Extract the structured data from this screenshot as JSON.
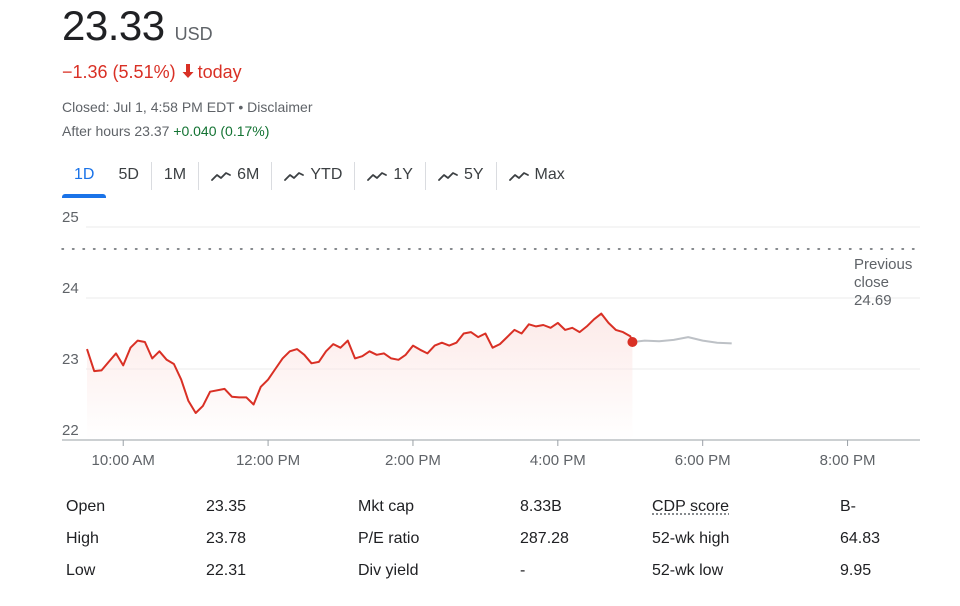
{
  "quote": {
    "price": "23.33",
    "currency": "USD",
    "change": "−1.36 (5.51%)",
    "change_suffix": "today",
    "closed_text": "Closed: Jul 1, 4:58 PM EDT",
    "bullet": " • ",
    "disclaimer": "Disclaimer",
    "after_hours_label": "After hours 23.37",
    "after_hours_change": "+0.040 (0.17%)"
  },
  "colors": {
    "down": "#d93025",
    "up": "#137333",
    "accent": "#1a73e8",
    "after_hours_line": "#bdc1c6"
  },
  "tabs": [
    {
      "label": "1D",
      "icon": "",
      "active": true
    },
    {
      "label": "5D",
      "icon": "",
      "active": false
    },
    {
      "label": "1M",
      "icon": "",
      "active": false
    },
    {
      "label": "6M",
      "icon": "trend-icon",
      "active": false
    },
    {
      "label": "YTD",
      "icon": "trend-icon",
      "active": false
    },
    {
      "label": "1Y",
      "icon": "trend-icon",
      "active": false
    },
    {
      "label": "5Y",
      "icon": "trend-icon",
      "active": false
    },
    {
      "label": "Max",
      "icon": "trend-icon",
      "active": false
    }
  ],
  "chart_data": {
    "type": "line",
    "ylim": [
      22,
      25
    ],
    "y_ticks": [
      "22",
      "23",
      "24",
      "25"
    ],
    "x_ticks": [
      "10:00 AM",
      "12:00 PM",
      "2:00 PM",
      "4:00 PM",
      "6:00 PM",
      "8:00 PM"
    ],
    "x_tick_hours": [
      10,
      12,
      14,
      16,
      18,
      20
    ],
    "xlim_hours": [
      9.5,
      21.0
    ],
    "previous_close": {
      "label_line1": "Previous",
      "label_line2": "close",
      "value": 24.69
    },
    "grid": true,
    "series": [
      {
        "values": [
          [
            9.5,
            23.28
          ],
          [
            9.6,
            22.97
          ],
          [
            9.7,
            22.98
          ],
          [
            9.8,
            23.1
          ],
          [
            9.9,
            23.22
          ],
          [
            10.0,
            23.05
          ],
          [
            10.1,
            23.3
          ],
          [
            10.2,
            23.4
          ],
          [
            10.3,
            23.38
          ],
          [
            10.4,
            23.15
          ],
          [
            10.5,
            23.25
          ],
          [
            10.6,
            23.13
          ],
          [
            10.7,
            23.07
          ],
          [
            10.8,
            22.85
          ],
          [
            10.9,
            22.55
          ],
          [
            11.0,
            22.38
          ],
          [
            11.1,
            22.48
          ],
          [
            11.2,
            22.68
          ],
          [
            11.4,
            22.72
          ],
          [
            11.5,
            22.61
          ],
          [
            11.6,
            22.6
          ],
          [
            11.7,
            22.6
          ],
          [
            11.8,
            22.5
          ],
          [
            11.9,
            22.75
          ],
          [
            12.0,
            22.85
          ],
          [
            12.1,
            23.0
          ],
          [
            12.2,
            23.15
          ],
          [
            12.3,
            23.25
          ],
          [
            12.4,
            23.28
          ],
          [
            12.5,
            23.2
          ],
          [
            12.6,
            23.08
          ],
          [
            12.7,
            23.1
          ],
          [
            12.8,
            23.25
          ],
          [
            12.9,
            23.35
          ],
          [
            13.0,
            23.3
          ],
          [
            13.1,
            23.4
          ],
          [
            13.2,
            23.15
          ],
          [
            13.3,
            23.18
          ],
          [
            13.4,
            23.25
          ],
          [
            13.5,
            23.2
          ],
          [
            13.6,
            23.22
          ],
          [
            13.7,
            23.15
          ],
          [
            13.8,
            23.13
          ],
          [
            13.9,
            23.2
          ],
          [
            14.0,
            23.33
          ],
          [
            14.1,
            23.27
          ],
          [
            14.2,
            23.22
          ],
          [
            14.3,
            23.33
          ],
          [
            14.4,
            23.37
          ],
          [
            14.5,
            23.33
          ],
          [
            14.6,
            23.37
          ],
          [
            14.7,
            23.5
          ],
          [
            14.8,
            23.52
          ],
          [
            14.9,
            23.45
          ],
          [
            15.0,
            23.5
          ],
          [
            15.1,
            23.3
          ],
          [
            15.2,
            23.35
          ],
          [
            15.3,
            23.45
          ],
          [
            15.4,
            23.55
          ],
          [
            15.5,
            23.5
          ],
          [
            15.6,
            23.63
          ],
          [
            15.7,
            23.6
          ],
          [
            15.8,
            23.62
          ],
          [
            15.9,
            23.58
          ],
          [
            16.0,
            23.65
          ],
          [
            16.1,
            23.55
          ],
          [
            16.2,
            23.58
          ],
          [
            16.3,
            23.52
          ],
          [
            16.4,
            23.6
          ],
          [
            16.5,
            23.7
          ],
          [
            16.6,
            23.78
          ],
          [
            16.7,
            23.65
          ],
          [
            16.8,
            23.55
          ],
          [
            16.9,
            23.52
          ],
          [
            17.0,
            23.46
          ],
          [
            17.03,
            23.38
          ]
        ],
        "color": "#d93025"
      },
      {
        "values": [
          [
            17.03,
            23.38
          ],
          [
            17.2,
            23.4
          ],
          [
            17.4,
            23.39
          ],
          [
            17.6,
            23.41
          ],
          [
            17.8,
            23.45
          ],
          [
            18.0,
            23.4
          ],
          [
            18.2,
            23.37
          ],
          [
            18.4,
            23.36
          ]
        ],
        "color": "#bdc1c6"
      }
    ]
  },
  "stats": [
    {
      "label": "Open",
      "value": "23.35"
    },
    {
      "label": "High",
      "value": "23.78"
    },
    {
      "label": "Low",
      "value": "22.31"
    },
    {
      "label": "Mkt cap",
      "value": "8.33B"
    },
    {
      "label": "P/E ratio",
      "value": "287.28"
    },
    {
      "label": "Div yield",
      "value": "-"
    },
    {
      "label": "CDP score",
      "value": "B-"
    },
    {
      "label": "52-wk high",
      "value": "64.83"
    },
    {
      "label": "52-wk low",
      "value": "9.95"
    }
  ]
}
